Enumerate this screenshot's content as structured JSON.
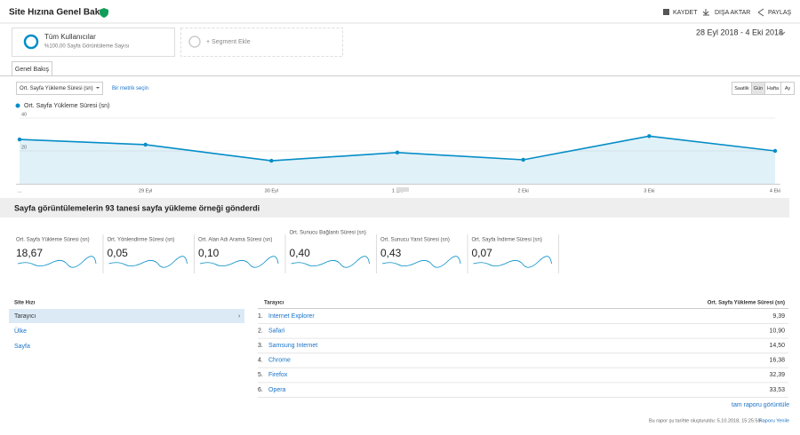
{
  "header": {
    "title": "Site Hızına Genel Bakış",
    "actions": [
      "KAYDET",
      "DIŞA AKTAR",
      "PAYLAŞ"
    ]
  },
  "segment": {
    "name": "Tüm Kullanıcılar",
    "detail": "%100,00 Sayfa Görüntüleme Sayısı",
    "add": "+ Segment Ekle"
  },
  "date_range": "28 Eyl 2018 - 4 Eki 2018",
  "tab": "Genel Bakış",
  "controls": {
    "metric": "Ort. Sayfa Yükleme Süresi (sn)",
    "pick": "Bir metrik seçin",
    "periods": [
      "Saatlik",
      "Gün",
      "Hafta",
      "Ay"
    ]
  },
  "chart_data": {
    "type": "line",
    "categories": [
      "...",
      "29 Eyl",
      "30 Eyl",
      "1 Eki",
      "2 Eki",
      "3 Eki",
      "4 Eki"
    ],
    "series": [
      {
        "name": "Ort. Sayfa Yükleme Süresi (sn)",
        "color": "#058dc7",
        "values": [
          27,
          23.8,
          14,
          19,
          14.6,
          29,
          20
        ]
      }
    ],
    "ylim": [
      0,
      40
    ],
    "yticks": [
      20,
      40
    ]
  },
  "summary": {
    "heading": "Sayfa görüntülemelerin 93 tanesi sayfa yükleme örneği gönderdi",
    "metrics": [
      {
        "label": "Ort. Sayfa Yükleme Süresi (sn)",
        "value": "18,67"
      },
      {
        "label": "Ort. Yönlendirme Süresi (sn)",
        "value": "0,05"
      },
      {
        "label": "Ort. Alan Adı Arama Süresi (sn)",
        "value": "0,10"
      },
      {
        "label": "Ort. Sunucu Bağlantı Süresi (sn)",
        "value": "0,40"
      },
      {
        "label": "Ort. Sunucu Yanıt Süresi (sn)",
        "value": "0,43"
      },
      {
        "label": "Ort. Sayfa İndirme Süresi (sn)",
        "value": "0,07"
      }
    ]
  },
  "dimensions": {
    "header": "Site Hızı",
    "items": [
      "Tarayıcı",
      "Ülke",
      "Sayfa"
    ]
  },
  "table": {
    "headers": [
      "Tarayıcı",
      "Ort. Sayfa Yükleme Süresi (sn)"
    ],
    "rows": [
      [
        "1.",
        "Internet Explorer",
        "9,39"
      ],
      [
        "2.",
        "Safari",
        "10,90"
      ],
      [
        "3.",
        "Samsung Internet",
        "14,50"
      ],
      [
        "4.",
        "Chrome",
        "16,38"
      ],
      [
        "5.",
        "Firefox",
        "32,39"
      ],
      [
        "6.",
        "Opera",
        "33,53"
      ]
    ]
  },
  "full_report": "tam raporu görüntüle",
  "footer": {
    "text": "Bu rapor şu tarihte oluşturuldu: 5.10.2018, 15:25:50 -",
    "refresh": "Raporu Yenile"
  }
}
